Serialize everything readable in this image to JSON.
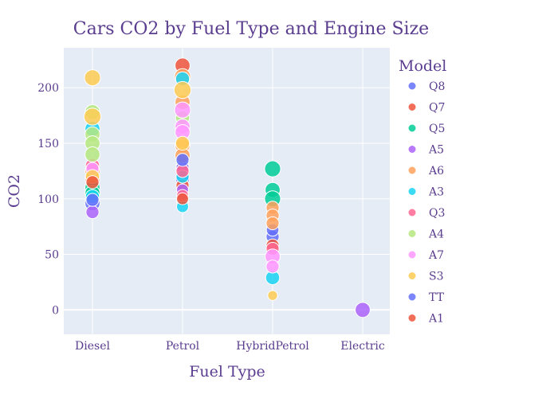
{
  "chart_data": {
    "type": "scatter",
    "title": "Cars CO2 by Fuel Type and Engine Size",
    "xlabel": "Fuel Type",
    "ylabel": "CO2",
    "categories": [
      "Diesel",
      "Petrol",
      "HybridPetrol",
      "Electric"
    ],
    "ylim": [
      -22,
      236
    ],
    "yticks": [
      0,
      50,
      100,
      150,
      200
    ],
    "grid": true,
    "legend": {
      "title": "Model",
      "placement": "right",
      "entries": [
        "Q8",
        "Q7",
        "Q5",
        "A5",
        "A6",
        "A3",
        "Q3",
        "A4",
        "A7",
        "S3",
        "TT",
        "A1"
      ]
    },
    "series": [
      {
        "name": "Q8",
        "color": "#636efa",
        "points": [
          {
            "x": "Diesel",
            "y": 96,
            "size": 2.0
          },
          {
            "x": "Petrol",
            "y": 118,
            "size": 1.8
          },
          {
            "x": "HybridPetrol",
            "y": 66,
            "size": 1.6
          },
          {
            "x": "HybridPetrol",
            "y": 72,
            "size": 1.5
          }
        ]
      },
      {
        "name": "Q7",
        "color": "#ef553b",
        "points": [
          {
            "x": "Petrol",
            "y": 220,
            "size": 2.0
          },
          {
            "x": "Petrol",
            "y": 112,
            "size": 1.6
          },
          {
            "x": "Diesel",
            "y": 118,
            "size": 2.0
          },
          {
            "x": "HybridPetrol",
            "y": 58,
            "size": 1.6
          }
        ]
      },
      {
        "name": "Q5",
        "color": "#00cc96",
        "points": [
          {
            "x": "HybridPetrol",
            "y": 127,
            "size": 2.2
          },
          {
            "x": "HybridPetrol",
            "y": 108,
            "size": 2.0
          },
          {
            "x": "HybridPetrol",
            "y": 100,
            "size": 2.2
          },
          {
            "x": "Diesel",
            "y": 110,
            "size": 2.0
          },
          {
            "x": "Diesel",
            "y": 105,
            "size": 2.0
          },
          {
            "x": "Petrol",
            "y": 130,
            "size": 1.6
          }
        ]
      },
      {
        "name": "A5",
        "color": "#ab63fa",
        "points": [
          {
            "x": "Diesel",
            "y": 88,
            "size": 1.6
          },
          {
            "x": "Petrol",
            "y": 128,
            "size": 1.6
          },
          {
            "x": "Petrol",
            "y": 108,
            "size": 1.4
          },
          {
            "x": "Electric",
            "y": 0,
            "size": 2.0
          }
        ]
      },
      {
        "name": "A6",
        "color": "#ffa15a",
        "points": [
          {
            "x": "Petrol",
            "y": 210,
            "size": 2.2
          },
          {
            "x": "Petrol",
            "y": 187,
            "size": 2.0
          },
          {
            "x": "Petrol",
            "y": 148,
            "size": 2.0
          },
          {
            "x": "Petrol",
            "y": 139,
            "size": 2.0
          },
          {
            "x": "Diesel",
            "y": 125,
            "size": 2.0
          },
          {
            "x": "HybridPetrol",
            "y": 92,
            "size": 1.6
          },
          {
            "x": "HybridPetrol",
            "y": 85,
            "size": 1.6
          },
          {
            "x": "HybridPetrol",
            "y": 78,
            "size": 1.6
          }
        ]
      },
      {
        "name": "A3",
        "color": "#19d3f3",
        "points": [
          {
            "x": "Petrol",
            "y": 208,
            "size": 1.8
          },
          {
            "x": "Petrol",
            "y": 120,
            "size": 1.6
          },
          {
            "x": "Petrol",
            "y": 98,
            "size": 1.4
          },
          {
            "x": "Petrol",
            "y": 93,
            "size": 1.4
          },
          {
            "x": "Diesel",
            "y": 163,
            "size": 2.0
          },
          {
            "x": "Diesel",
            "y": 102,
            "size": 1.8
          },
          {
            "x": "HybridPetrol",
            "y": 29,
            "size": 1.8
          }
        ]
      },
      {
        "name": "Q3",
        "color": "#ff6692",
        "points": [
          {
            "x": "Diesel",
            "y": 130,
            "size": 1.8
          },
          {
            "x": "Petrol",
            "y": 125,
            "size": 1.6
          },
          {
            "x": "Petrol",
            "y": 103,
            "size": 1.4
          },
          {
            "x": "HybridPetrol",
            "y": 55,
            "size": 1.6
          }
        ]
      },
      {
        "name": "A4",
        "color": "#b6e880",
        "points": [
          {
            "x": "Diesel",
            "y": 178,
            "size": 2.0
          },
          {
            "x": "Diesel",
            "y": 158,
            "size": 2.0
          },
          {
            "x": "Diesel",
            "y": 150,
            "size": 2.0
          },
          {
            "x": "Diesel",
            "y": 140,
            "size": 2.0
          },
          {
            "x": "Petrol",
            "y": 173,
            "size": 1.8
          }
        ]
      },
      {
        "name": "A7",
        "color": "#ff97ff",
        "points": [
          {
            "x": "Petrol",
            "y": 180,
            "size": 2.2
          },
          {
            "x": "Petrol",
            "y": 165,
            "size": 2.0
          },
          {
            "x": "Petrol",
            "y": 160,
            "size": 2.0
          },
          {
            "x": "Diesel",
            "y": 127,
            "size": 1.6
          },
          {
            "x": "HybridPetrol",
            "y": 48,
            "size": 2.0
          },
          {
            "x": "HybridPetrol",
            "y": 39,
            "size": 1.6
          }
        ]
      },
      {
        "name": "S3",
        "color": "#fecb52",
        "points": [
          {
            "x": "Diesel",
            "y": 209,
            "size": 2.2
          },
          {
            "x": "Diesel",
            "y": 174,
            "size": 2.4
          },
          {
            "x": "Diesel",
            "y": 120,
            "size": 1.8
          },
          {
            "x": "Petrol",
            "y": 198,
            "size": 2.4
          },
          {
            "x": "Petrol",
            "y": 150,
            "size": 1.8
          },
          {
            "x": "HybridPetrol",
            "y": 13,
            "size": 1.0
          }
        ]
      },
      {
        "name": "TT",
        "color": "#636efa",
        "points": [
          {
            "x": "Petrol",
            "y": 135,
            "size": 1.6
          },
          {
            "x": "Diesel",
            "y": 99,
            "size": 1.6
          }
        ]
      },
      {
        "name": "A1",
        "color": "#ef553b",
        "points": [
          {
            "x": "Petrol",
            "y": 100,
            "size": 1.4
          },
          {
            "x": "Diesel",
            "y": 115,
            "size": 1.6
          }
        ]
      }
    ]
  }
}
